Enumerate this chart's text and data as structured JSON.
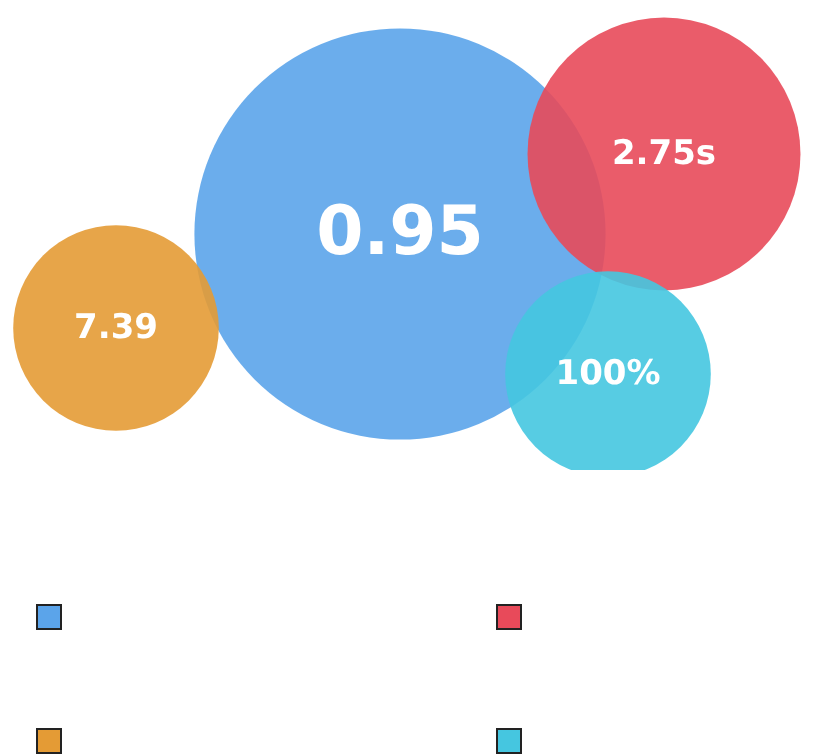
{
  "chart_data": {
    "type": "other",
    "categories": [
      null,
      null,
      null,
      null
    ],
    "values": [
      0.95,
      2.75,
      7.39,
      100
    ],
    "value_labels": [
      "0.95",
      "2.75s",
      "7.39",
      "100%"
    ],
    "colors": [
      "#5ba4ea",
      "#e84a5a",
      "#e49b35",
      "#45c6e0"
    ]
  }
}
